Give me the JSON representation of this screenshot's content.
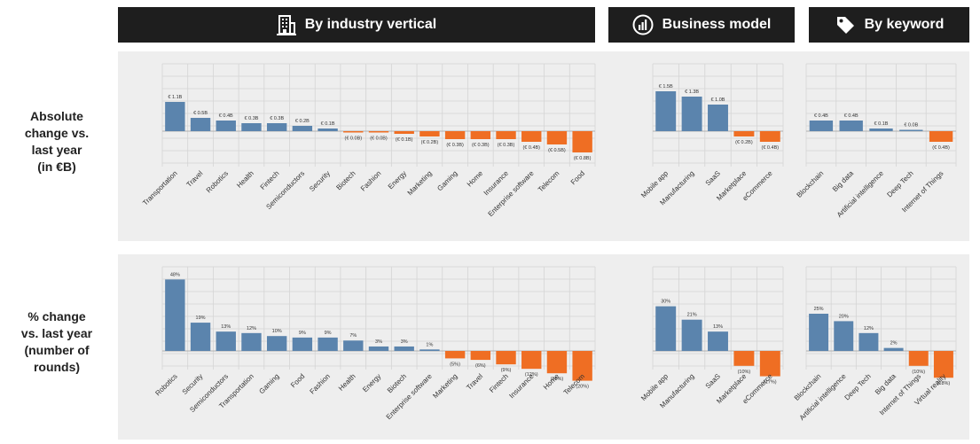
{
  "headers": {
    "industry": "By industry vertical",
    "business": "Business model",
    "keyword": "By keyword"
  },
  "row_labels": {
    "absolute": [
      "Absolute",
      "change vs.",
      "last year",
      "(in €B)"
    ],
    "percent": [
      "% change",
      "vs. last year",
      "(number of",
      "rounds)"
    ]
  },
  "colors": {
    "positive": "#5b84ad",
    "negative": "#ef6e23",
    "header_bg": "#1e1e1e",
    "panel_bg": "#eeeeee"
  },
  "chart_data": [
    {
      "type": "bar",
      "title": "",
      "ylabel": "Absolute change vs. last year (in €B)",
      "groups": [
        {
          "name": "By industry vertical",
          "categories": [
            "Transportation",
            "Travel",
            "Robotics",
            "Health",
            "Fintech",
            "Semiconductors",
            "Security",
            "Biotech",
            "Fashion",
            "Energy",
            "Marketing",
            "Gaming",
            "Home",
            "Insurance",
            "Enterprise software",
            "Telecom",
            "Food"
          ],
          "values": [
            1.1,
            0.5,
            0.4,
            0.3,
            0.3,
            0.2,
            0.1,
            -0.01,
            -0.03,
            -0.1,
            -0.2,
            -0.3,
            -0.3,
            -0.3,
            -0.4,
            -0.5,
            -0.8
          ],
          "labels": [
            "€ 1.1B",
            "€ 0.5B",
            "€ 0.4B",
            "€ 0.3B",
            "€ 0.3B",
            "€ 0.2B",
            "€ 0.1B",
            "(€ 0.0B)",
            "(€ 0.0B)",
            "(€ 0.1B)",
            "(€ 0.2B)",
            "(€ 0.3B)",
            "(€ 0.3B)",
            "(€ 0.3B)",
            "(€ 0.4B)",
            "(€ 0.5B)",
            "(€ 0.8B)"
          ]
        },
        {
          "name": "Business model",
          "categories": [
            "Mobile app",
            "Manufacturing",
            "SaaS",
            "Marketplace",
            "eCommerce"
          ],
          "values": [
            1.5,
            1.3,
            1.0,
            -0.2,
            -0.4
          ],
          "labels": [
            "€ 1.5B",
            "€ 1.3B",
            "€ 1.0B",
            "(€ 0.2B)",
            "(€ 0.4B)"
          ]
        },
        {
          "name": "By keyword",
          "categories": [
            "Blockchain",
            "Big data",
            "Artificial intelligence",
            "Deep Tech",
            "Internet of Things"
          ],
          "values": [
            0.4,
            0.4,
            0.1,
            0.01,
            -0.4
          ],
          "labels": [
            "€ 0.4B",
            "€ 0.4B",
            "€ 0.1B",
            "€ 0.0B",
            "(€ 0.4B)"
          ]
        }
      ]
    },
    {
      "type": "bar",
      "title": "",
      "ylabel": "% change vs. last year (number of rounds)",
      "groups": [
        {
          "name": "By industry vertical",
          "categories": [
            "Robotics",
            "Security",
            "Semiconductors",
            "Transportation",
            "Gaming",
            "Food",
            "Fashion",
            "Health",
            "Energy",
            "Biotech",
            "Enterprise software",
            "Marketing",
            "Travel",
            "Fintech",
            "Insurance",
            "Home",
            "Telecom"
          ],
          "values": [
            48,
            19,
            13,
            12,
            10,
            9,
            9,
            7,
            3,
            3,
            1,
            -5,
            -6,
            -9,
            -12,
            -15,
            -20
          ],
          "labels": [
            "48%",
            "19%",
            "13%",
            "12%",
            "10%",
            "9%",
            "9%",
            "7%",
            "3%",
            "3%",
            "1%",
            "(5%)",
            "(6%)",
            "(9%)",
            "(12%)",
            "(15%)",
            "(20%)"
          ]
        },
        {
          "name": "Business model",
          "categories": [
            "Mobile app",
            "Manufacturing",
            "SaaS",
            "Marketplace",
            "eCommerce"
          ],
          "values": [
            30,
            21,
            13,
            -10,
            -17
          ],
          "labels": [
            "30%",
            "21%",
            "13%",
            "(10%)",
            "(17%)"
          ]
        },
        {
          "name": "By keyword",
          "categories": [
            "Blockchain",
            "Artificial intelligence",
            "Deep Tech",
            "Big data",
            "Internet of Things",
            "Virtual reality"
          ],
          "values": [
            25,
            20,
            12,
            2,
            -10,
            -18
          ],
          "labels": [
            "25%",
            "20%",
            "12%",
            "2%",
            "(10%)",
            "(18%)"
          ]
        }
      ]
    }
  ]
}
